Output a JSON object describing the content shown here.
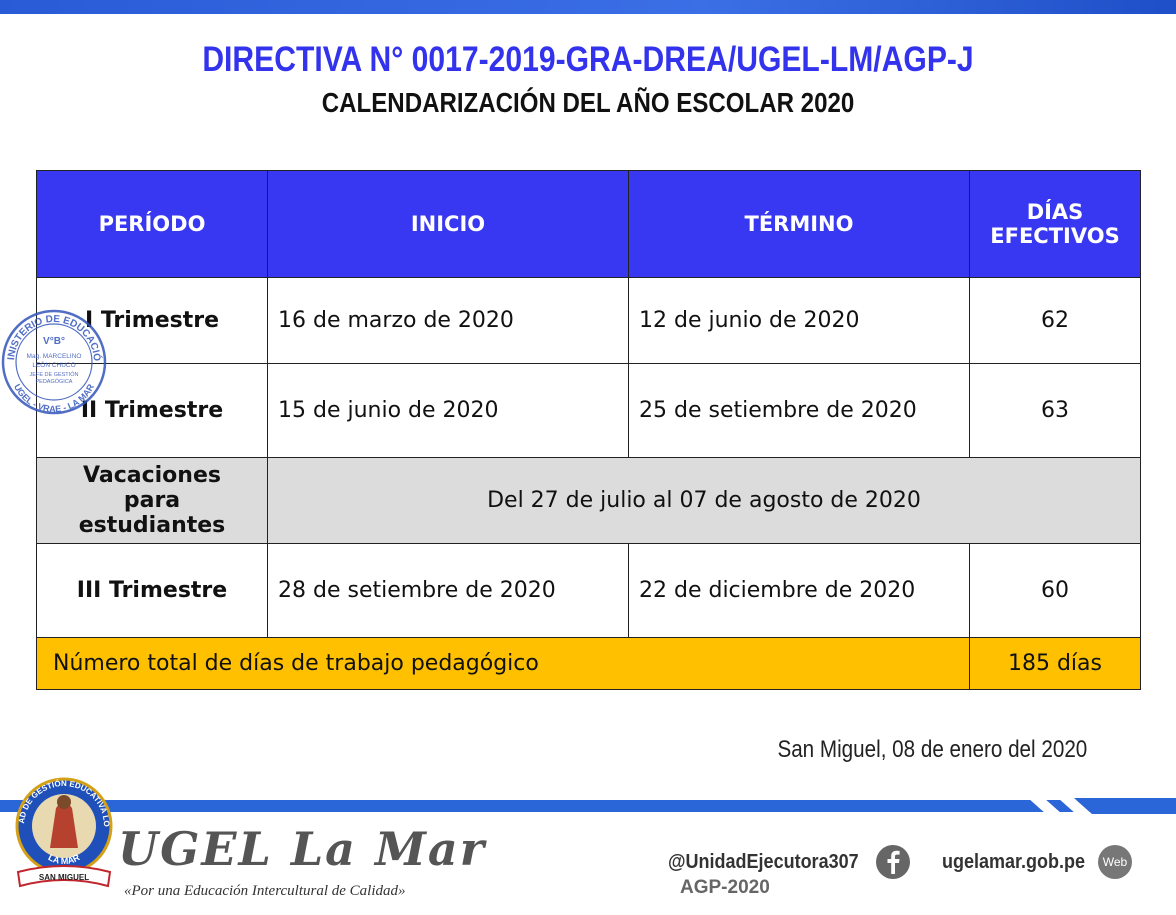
{
  "header": {
    "title": "DIRECTIVA N° 0017-2019-GRA-DREA/UGEL-LM/AGP-J",
    "subtitle": "CALENDARIZACIÓN DEL AÑO ESCOLAR 2020"
  },
  "table": {
    "columns": [
      "PERÍODO",
      "INICIO",
      "TÉRMINO",
      "DÍAS EFECTIVOS"
    ],
    "rows": [
      [
        "I Trimestre",
        "16 de marzo de 2020",
        "12 de junio de 2020",
        "62"
      ],
      [
        "II Trimestre",
        "15 de junio de 2020",
        "25 de setiembre de 2020",
        "63"
      ]
    ],
    "vacation": [
      "Vacaciones para estudiantes",
      "Del 27 de julio al 07 de agosto de 2020"
    ],
    "rows_after": [
      [
        "III Trimestre",
        "28 de setiembre de 2020",
        "22 de diciembre de 2020",
        "60"
      ]
    ],
    "total": [
      "Número total de días de trabajo pedagógico",
      "185 días"
    ]
  },
  "date": "San Miguel, 08 de enero del 2020",
  "stamp": {
    "top": "MINISTERIO DE EDUCACIÓN",
    "bottom": "UGEL - VRAE - LA MAR",
    "lines": [
      "V°B°",
      "Mag. MARCELINO",
      "LEÓN CHUCO",
      "JEFE DE GESTIÓN",
      "PEDAGÓGICA"
    ]
  },
  "footer": {
    "logo_top": "UNIDAD DE GESTIÓN EDUCATIVA LOCAL",
    "logo_bottom": "LA MAR",
    "logo_ribbon": "SAN MIGUEL",
    "brand": "UGEL La Mar",
    "slogan": "«Por una Educación Intercultural de Calidad»",
    "social": "@UnidadEjecutora307",
    "code": "AGP-2020",
    "site": "ugelamar.gob.pe",
    "web": "Web"
  }
}
